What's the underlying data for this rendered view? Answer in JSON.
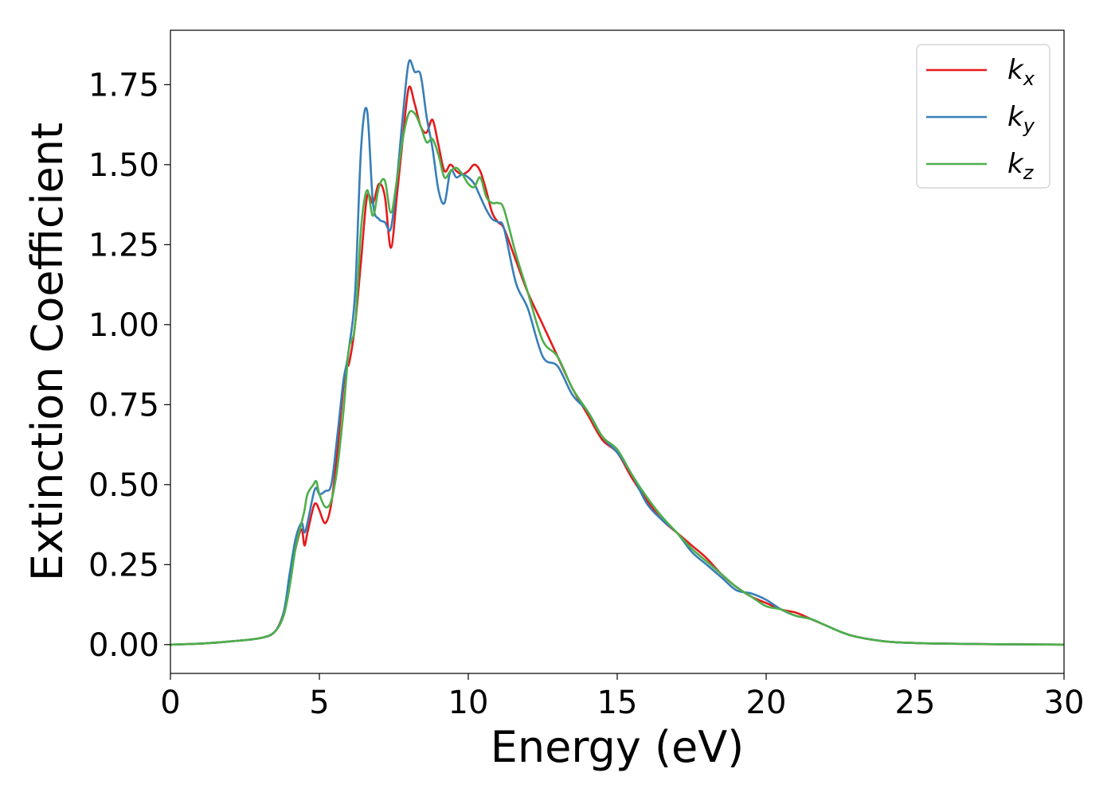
{
  "chart_data": {
    "type": "line",
    "xlabel": "Energy (eV)",
    "ylabel": "Extinction Coefficient",
    "xlim": [
      0,
      30
    ],
    "ylim": [
      -0.09,
      1.92
    ],
    "xticks": [
      0,
      5,
      10,
      15,
      20,
      25,
      30
    ],
    "xtick_labels": [
      "0",
      "5",
      "10",
      "15",
      "20",
      "25",
      "30"
    ],
    "yticks": [
      0.0,
      0.25,
      0.5,
      0.75,
      1.0,
      1.25,
      1.5,
      1.75
    ],
    "ytick_labels": [
      "0.00",
      "0.25",
      "0.50",
      "0.75",
      "1.00",
      "1.25",
      "1.50",
      "1.75"
    ],
    "grid": false,
    "legend_position": "top-right",
    "series": [
      {
        "name": "k_x",
        "legend_main": "k",
        "legend_sub": "x",
        "color": "#e41a1c",
        "x": [
          0,
          1,
          2,
          3,
          3.5,
          3.8,
          4.0,
          4.2,
          4.4,
          4.5,
          4.6,
          4.8,
          4.9,
          5.0,
          5.2,
          5.4,
          5.6,
          5.8,
          5.9,
          6.0,
          6.2,
          6.4,
          6.6,
          6.8,
          7.0,
          7.2,
          7.4,
          7.6,
          7.8,
          8.0,
          8.2,
          8.4,
          8.6,
          8.8,
          9.0,
          9.2,
          9.4,
          9.6,
          9.8,
          10.0,
          10.2,
          10.4,
          10.6,
          10.8,
          11.0,
          11.2,
          11.6,
          12.0,
          12.5,
          13.0,
          13.5,
          14.0,
          14.5,
          15.0,
          15.5,
          16.0,
          16.5,
          17.0,
          17.5,
          18.0,
          18.5,
          19.0,
          19.5,
          20.0,
          20.5,
          21.0,
          21.5,
          22.0,
          22.5,
          23.0,
          24.0,
          25.0,
          26.0,
          28.0,
          30.0
        ],
        "y": [
          0.0,
          0.003,
          0.01,
          0.02,
          0.04,
          0.1,
          0.2,
          0.3,
          0.36,
          0.31,
          0.35,
          0.43,
          0.44,
          0.42,
          0.38,
          0.44,
          0.6,
          0.8,
          0.87,
          0.88,
          1.0,
          1.2,
          1.4,
          1.38,
          1.44,
          1.4,
          1.24,
          1.4,
          1.58,
          1.74,
          1.69,
          1.62,
          1.6,
          1.64,
          1.56,
          1.48,
          1.5,
          1.48,
          1.47,
          1.48,
          1.5,
          1.48,
          1.42,
          1.35,
          1.32,
          1.3,
          1.2,
          1.1,
          1.0,
          0.9,
          0.8,
          0.72,
          0.64,
          0.6,
          0.52,
          0.45,
          0.39,
          0.35,
          0.31,
          0.27,
          0.22,
          0.18,
          0.15,
          0.13,
          0.11,
          0.1,
          0.08,
          0.06,
          0.04,
          0.025,
          0.01,
          0.005,
          0.003,
          0.001,
          0.0
        ]
      },
      {
        "name": "k_y",
        "legend_main": "k",
        "legend_sub": "y",
        "color": "#377eb8",
        "x": [
          0,
          1,
          2,
          3,
          3.5,
          3.8,
          4.0,
          4.2,
          4.4,
          4.5,
          4.6,
          4.8,
          4.9,
          5.0,
          5.2,
          5.4,
          5.6,
          5.8,
          5.9,
          6.0,
          6.2,
          6.4,
          6.6,
          6.8,
          7.0,
          7.2,
          7.4,
          7.6,
          7.8,
          8.0,
          8.2,
          8.4,
          8.6,
          8.8,
          9.0,
          9.2,
          9.4,
          9.6,
          9.8,
          10.0,
          10.2,
          10.4,
          10.6,
          10.8,
          11.0,
          11.2,
          11.6,
          12.0,
          12.5,
          13.0,
          13.5,
          14.0,
          14.5,
          15.0,
          15.5,
          16.0,
          16.5,
          17.0,
          17.5,
          18.0,
          18.5,
          19.0,
          19.5,
          20.0,
          20.5,
          21.0,
          21.5,
          22.0,
          22.5,
          23.0,
          24.0,
          25.0,
          26.0,
          28.0,
          30.0
        ],
        "y": [
          0.0,
          0.003,
          0.01,
          0.02,
          0.04,
          0.1,
          0.22,
          0.33,
          0.38,
          0.35,
          0.38,
          0.47,
          0.49,
          0.47,
          0.48,
          0.5,
          0.65,
          0.82,
          0.87,
          0.93,
          1.1,
          1.55,
          1.67,
          1.38,
          1.33,
          1.32,
          1.3,
          1.45,
          1.65,
          1.82,
          1.79,
          1.78,
          1.65,
          1.55,
          1.42,
          1.38,
          1.48,
          1.46,
          1.47,
          1.46,
          1.44,
          1.4,
          1.36,
          1.33,
          1.32,
          1.3,
          1.13,
          1.05,
          0.9,
          0.87,
          0.78,
          0.73,
          0.65,
          0.6,
          0.53,
          0.44,
          0.39,
          0.35,
          0.29,
          0.25,
          0.21,
          0.17,
          0.16,
          0.14,
          0.11,
          0.09,
          0.08,
          0.06,
          0.04,
          0.025,
          0.01,
          0.005,
          0.003,
          0.001,
          0.0
        ]
      },
      {
        "name": "k_z",
        "legend_main": "k",
        "legend_sub": "z",
        "color": "#4daf4a",
        "x": [
          0,
          1,
          2,
          3,
          3.5,
          3.8,
          4.0,
          4.2,
          4.4,
          4.5,
          4.6,
          4.8,
          4.9,
          5.0,
          5.2,
          5.4,
          5.6,
          5.8,
          5.9,
          6.0,
          6.2,
          6.4,
          6.6,
          6.8,
          7.0,
          7.2,
          7.4,
          7.6,
          7.8,
          8.0,
          8.2,
          8.4,
          8.6,
          8.8,
          9.0,
          9.2,
          9.4,
          9.6,
          9.8,
          10.0,
          10.2,
          10.4,
          10.6,
          10.8,
          11.0,
          11.2,
          11.6,
          12.0,
          12.5,
          13.0,
          13.5,
          14.0,
          14.5,
          15.0,
          15.5,
          16.0,
          16.5,
          17.0,
          17.5,
          18.0,
          18.5,
          19.0,
          19.5,
          20.0,
          20.5,
          21.0,
          21.5,
          22.0,
          22.5,
          23.0,
          24.0,
          25.0,
          26.0,
          28.0,
          30.0
        ],
        "y": [
          0.0,
          0.003,
          0.01,
          0.02,
          0.04,
          0.09,
          0.18,
          0.3,
          0.38,
          0.42,
          0.47,
          0.5,
          0.51,
          0.47,
          0.43,
          0.45,
          0.55,
          0.72,
          0.83,
          0.93,
          1.0,
          1.3,
          1.42,
          1.34,
          1.43,
          1.45,
          1.35,
          1.45,
          1.58,
          1.66,
          1.66,
          1.62,
          1.57,
          1.58,
          1.53,
          1.46,
          1.48,
          1.49,
          1.47,
          1.44,
          1.43,
          1.46,
          1.4,
          1.38,
          1.38,
          1.36,
          1.22,
          1.1,
          0.95,
          0.9,
          0.8,
          0.73,
          0.65,
          0.61,
          0.53,
          0.46,
          0.4,
          0.35,
          0.3,
          0.26,
          0.22,
          0.18,
          0.15,
          0.12,
          0.11,
          0.09,
          0.08,
          0.06,
          0.04,
          0.025,
          0.01,
          0.005,
          0.003,
          0.001,
          0.0
        ]
      }
    ]
  }
}
